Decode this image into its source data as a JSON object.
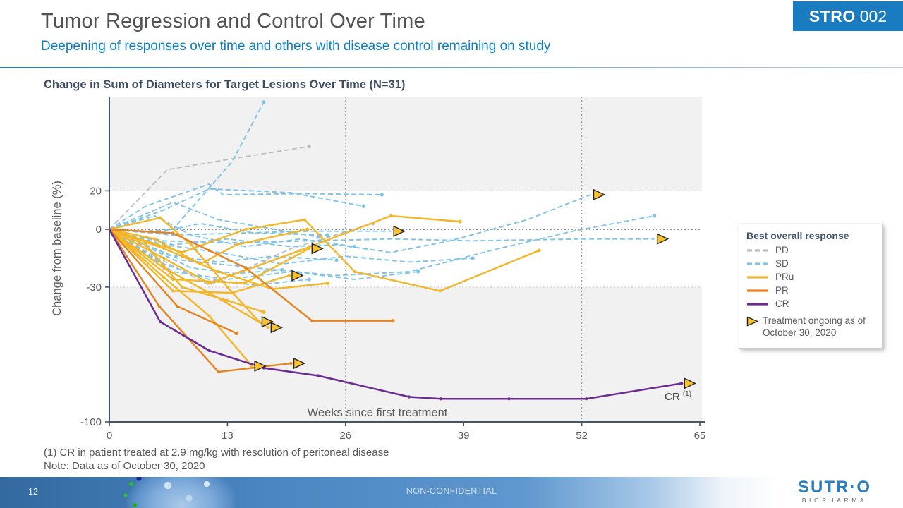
{
  "slide": {
    "title": "Tumor Regression and Control Over Time",
    "subtitle": "Deepening of responses over time and others with disease control remaining on study",
    "badge": {
      "brand": "STRO",
      "code": "002"
    },
    "footnote1": "(1) CR in patient treated at 2.9 mg/kg with resolution of peritoneal disease",
    "footnote2": "Note: Data as of October 30, 2020",
    "footer": {
      "page": "12",
      "classification": "NON-CONFIDENTIAL",
      "logo_main": "SUTR·O",
      "logo_sub": "BIOPHARMA"
    }
  },
  "chart_data": {
    "type": "line",
    "title": "Change in Sum of Diameters for Target Lesions Over Time (N=31)",
    "xlabel": "Weeks since first treatment",
    "ylabel": "Change from baseline (%)",
    "xticks": [
      0,
      13,
      26,
      39,
      52,
      65
    ],
    "yticks": [
      20,
      0,
      -30,
      -100
    ],
    "xlim": [
      0,
      65
    ],
    "ylim": [
      -100,
      69
    ],
    "gridlines_x": [
      26,
      52
    ],
    "reference_lines_y": [
      20,
      0,
      -30
    ],
    "shaded_bands": [
      {
        "from": 20,
        "to": 69
      },
      {
        "from": -100,
        "to": -30
      }
    ],
    "annotation": {
      "text": "CR",
      "sup": "(1)",
      "week": 62,
      "value": -84
    },
    "legend": {
      "title": "Best overall response",
      "items": [
        {
          "key": "PD",
          "label": "PD"
        },
        {
          "key": "SD",
          "label": "SD"
        },
        {
          "key": "PRu",
          "label": "PRu"
        },
        {
          "key": "PR",
          "label": "PR"
        },
        {
          "key": "CR",
          "label": "CR"
        }
      ],
      "ongoing_label": "Treatment ongoing as of October 30, 2020"
    },
    "colors": {
      "PD": "#bdbdbd",
      "SD": "#7fc3e8",
      "PRu": "#f3b629",
      "PR": "#e8821e",
      "CR": "#6b2c91",
      "ongoing_marker": "#fcc22d",
      "band": "#f1f1f1",
      "axis": "#44546a",
      "tick_text": "#595959"
    },
    "series": [
      {
        "id": "pd1",
        "response": "PD",
        "ongoing": false,
        "points": [
          [
            0,
            0
          ],
          [
            6.4,
            31
          ],
          [
            14,
            37
          ],
          [
            22,
            43
          ]
        ]
      },
      {
        "id": "pd2",
        "response": "PD",
        "ongoing": false,
        "points": [
          [
            0,
            0
          ],
          [
            5,
            -14
          ],
          [
            11,
            -29
          ],
          [
            20,
            -10
          ],
          [
            29,
            3
          ]
        ]
      },
      {
        "id": "sd1",
        "response": "SD",
        "ongoing": false,
        "points": [
          [
            0,
            0
          ],
          [
            4,
            -1
          ],
          [
            7,
            0
          ],
          [
            13.5,
            35
          ],
          [
            17,
            66
          ]
        ]
      },
      {
        "id": "sd2",
        "response": "SD",
        "ongoing": false,
        "points": [
          [
            0,
            0
          ],
          [
            4,
            12
          ],
          [
            11,
            23.5
          ],
          [
            12.5,
            18
          ],
          [
            21,
            18.5
          ],
          [
            30,
            18
          ]
        ]
      },
      {
        "id": "sd3",
        "response": "SD",
        "ongoing": false,
        "points": [
          [
            0,
            0
          ],
          [
            6,
            10
          ],
          [
            11,
            21
          ],
          [
            20,
            19
          ],
          [
            28,
            12
          ]
        ]
      },
      {
        "id": "sd4",
        "response": "SD",
        "ongoing": true,
        "points": [
          [
            0,
            0
          ],
          [
            7,
            -8
          ],
          [
            13,
            -5
          ],
          [
            20,
            -9
          ],
          [
            25,
            -8
          ],
          [
            31,
            -12
          ],
          [
            37.5,
            -6
          ],
          [
            46,
            5
          ],
          [
            53,
            18
          ]
        ]
      },
      {
        "id": "sd5",
        "response": "SD",
        "ongoing": true,
        "points": [
          [
            0,
            0
          ],
          [
            7,
            -3
          ],
          [
            14,
            -2
          ],
          [
            22,
            -1
          ],
          [
            31,
            -1
          ]
        ]
      },
      {
        "id": "sd6",
        "response": "SD",
        "ongoing": true,
        "points": [
          [
            0,
            0
          ],
          [
            6,
            -6
          ],
          [
            13,
            -7
          ],
          [
            22,
            -6
          ],
          [
            31,
            -5
          ],
          [
            40,
            -6
          ],
          [
            52,
            -5
          ],
          [
            60,
            -5
          ]
        ]
      },
      {
        "id": "sd7",
        "response": "SD",
        "ongoing": false,
        "points": [
          [
            0,
            0
          ],
          [
            8,
            -16
          ],
          [
            16,
            -20
          ],
          [
            25,
            -24
          ],
          [
            33,
            -22
          ],
          [
            42,
            -11
          ],
          [
            51,
            -1
          ],
          [
            60,
            7
          ]
        ]
      },
      {
        "id": "sd8",
        "response": "SD",
        "ongoing": false,
        "points": [
          [
            0,
            0
          ],
          [
            7,
            -22
          ],
          [
            13,
            -26
          ],
          [
            20,
            -22
          ],
          [
            27,
            -26
          ],
          [
            34,
            -22
          ]
        ]
      },
      {
        "id": "sd9",
        "response": "SD",
        "ongoing": false,
        "points": [
          [
            0,
            0
          ],
          [
            6,
            -13
          ],
          [
            12,
            -17
          ],
          [
            18,
            -14
          ],
          [
            25,
            -16
          ]
        ]
      },
      {
        "id": "sd10",
        "response": "SD",
        "ongoing": false,
        "points": [
          [
            0,
            0
          ],
          [
            5,
            7
          ],
          [
            9,
            -3
          ],
          [
            15,
            -9
          ],
          [
            21,
            -5
          ],
          [
            27,
            -9
          ]
        ]
      },
      {
        "id": "sd11",
        "response": "SD",
        "ongoing": false,
        "points": [
          [
            0,
            0
          ],
          [
            6,
            -18
          ],
          [
            11,
            -26
          ],
          [
            16,
            -29
          ],
          [
            22,
            -26
          ]
        ]
      },
      {
        "id": "sd12",
        "response": "SD",
        "ongoing": false,
        "points": [
          [
            0,
            0
          ],
          [
            7,
            14
          ],
          [
            12,
            5
          ],
          [
            17,
            1
          ],
          [
            23,
            -4
          ]
        ]
      },
      {
        "id": "sd13",
        "response": "SD",
        "ongoing": false,
        "points": [
          [
            0,
            0
          ],
          [
            6,
            -8
          ],
          [
            12,
            -12
          ],
          [
            19,
            -18
          ],
          [
            26,
            -14
          ],
          [
            33,
            -17
          ],
          [
            40,
            -15
          ]
        ]
      },
      {
        "id": "sd14",
        "response": "SD",
        "ongoing": false,
        "points": [
          [
            0,
            0
          ],
          [
            5,
            -2
          ],
          [
            10,
            3
          ],
          [
            16,
            -2
          ],
          [
            24,
            -3
          ]
        ]
      },
      {
        "id": "sd15",
        "response": "SD",
        "ongoing": false,
        "points": [
          [
            0,
            0
          ],
          [
            9,
            -20
          ],
          [
            14,
            -23
          ],
          [
            19,
            -21
          ]
        ]
      },
      {
        "id": "pru1",
        "response": "PRu",
        "ongoing": false,
        "points": [
          [
            0,
            0
          ],
          [
            6,
            -15
          ],
          [
            11,
            -28
          ],
          [
            21,
            -11
          ],
          [
            31,
            7
          ],
          [
            38.6,
            4
          ]
        ]
      },
      {
        "id": "pru2",
        "response": "PRu",
        "ongoing": false,
        "points": [
          [
            0,
            0
          ],
          [
            8,
            -12
          ],
          [
            15,
            0
          ],
          [
            21.5,
            5
          ],
          [
            27,
            -22
          ],
          [
            36.4,
            -32
          ],
          [
            47.3,
            -11
          ]
        ]
      },
      {
        "id": "pru3",
        "response": "PRu",
        "ongoing": true,
        "points": [
          [
            0,
            0
          ],
          [
            5.6,
            6
          ],
          [
            9,
            -8
          ],
          [
            13,
            -30
          ],
          [
            16.5,
            -48
          ]
        ]
      },
      {
        "id": "pru4",
        "response": "PRu",
        "ongoing": true,
        "points": [
          [
            0,
            0
          ],
          [
            6,
            -20
          ],
          [
            11,
            -33
          ],
          [
            15,
            -44
          ],
          [
            17.5,
            -51
          ]
        ]
      },
      {
        "id": "pru5",
        "response": "PRu",
        "ongoing": true,
        "points": [
          [
            0,
            0
          ],
          [
            6,
            -25
          ],
          [
            11,
            -45
          ],
          [
            15.7,
            -71
          ]
        ]
      },
      {
        "id": "pru6",
        "response": "PRu",
        "ongoing": true,
        "points": [
          [
            0,
            0
          ],
          [
            7,
            -32
          ],
          [
            13.5,
            -33
          ],
          [
            19.8,
            -24
          ]
        ]
      },
      {
        "id": "pru7",
        "response": "PRu",
        "ongoing": true,
        "points": [
          [
            0,
            0
          ],
          [
            7,
            -26
          ],
          [
            14.9,
            -28
          ],
          [
            22,
            -10
          ]
        ]
      },
      {
        "id": "pru8",
        "response": "PRu",
        "ongoing": false,
        "points": [
          [
            0,
            0
          ],
          [
            5,
            -5
          ],
          [
            10,
            -18
          ],
          [
            14,
            -8
          ],
          [
            21.8,
            0
          ]
        ]
      },
      {
        "id": "pru9",
        "response": "PRu",
        "ongoing": false,
        "points": [
          [
            0,
            0
          ],
          [
            4,
            -8
          ],
          [
            8,
            -30
          ],
          [
            13,
            -37
          ],
          [
            17,
            -43
          ]
        ]
      },
      {
        "id": "pru10",
        "response": "PRu",
        "ongoing": false,
        "points": [
          [
            0,
            0
          ],
          [
            6,
            -10
          ],
          [
            12,
            -22
          ],
          [
            18,
            -31
          ],
          [
            24,
            -28
          ]
        ]
      },
      {
        "id": "pr1",
        "response": "PR",
        "ongoing": true,
        "points": [
          [
            0,
            0
          ],
          [
            5.5,
            -40
          ],
          [
            12,
            -74
          ],
          [
            20,
            -69.6
          ]
        ]
      },
      {
        "id": "pr2",
        "response": "PR",
        "ongoing": false,
        "points": [
          [
            0,
            0
          ],
          [
            7,
            -2
          ],
          [
            11,
            -11
          ],
          [
            15,
            -20
          ],
          [
            22.3,
            -47.5
          ],
          [
            31.2,
            -47.5
          ]
        ]
      },
      {
        "id": "pr3",
        "response": "PR",
        "ongoing": false,
        "points": [
          [
            0,
            0
          ],
          [
            7.5,
            -40
          ],
          [
            14,
            -54
          ]
        ]
      },
      {
        "id": "cr1",
        "response": "CR",
        "ongoing": true,
        "points": [
          [
            0,
            0
          ],
          [
            5.6,
            -48
          ],
          [
            11,
            -63
          ],
          [
            17,
            -72
          ],
          [
            23,
            -76
          ],
          [
            33,
            -87
          ],
          [
            36.5,
            -88
          ],
          [
            44,
            -88
          ],
          [
            52.5,
            -88
          ],
          [
            63,
            -80
          ]
        ]
      }
    ]
  }
}
